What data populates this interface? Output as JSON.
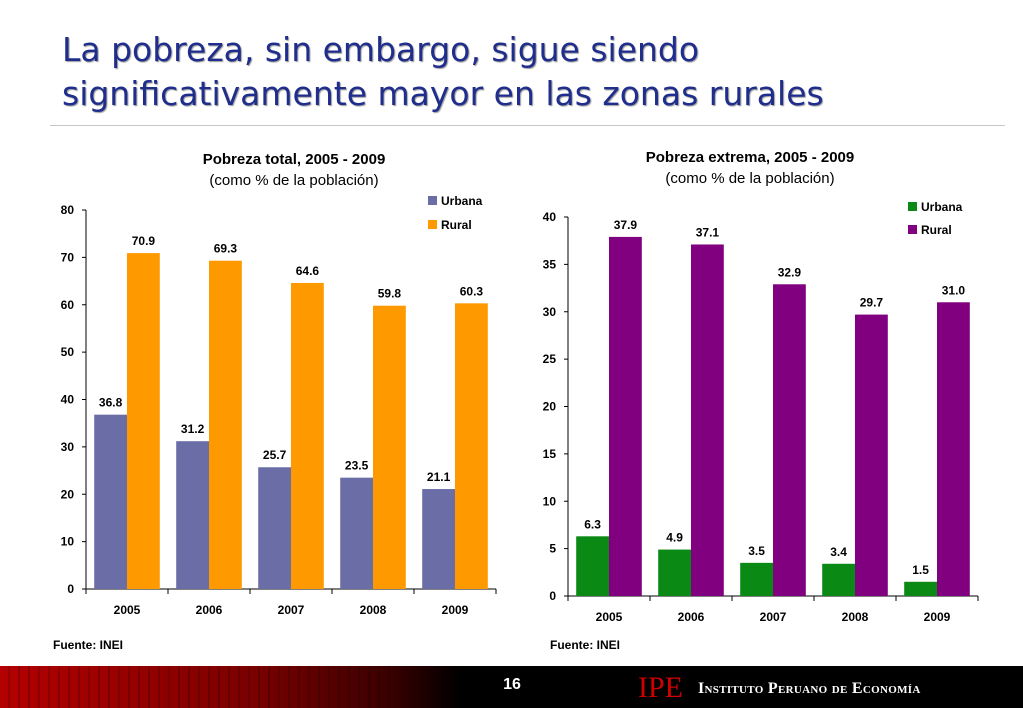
{
  "slide": {
    "title_line1": "La pobreza, sin embargo, sigue siendo",
    "title_line2": "significativamente mayor en las zonas rurales",
    "page_number": "16",
    "logo_text": "IPE",
    "institution": "Instituto Peruano de Economía"
  },
  "chart_data": [
    {
      "type": "bar",
      "title": "Pobreza total, 2005 - 2009",
      "subtitle": "(como % de la población)",
      "categories": [
        "2005",
        "2006",
        "2007",
        "2008",
        "2009"
      ],
      "series": [
        {
          "name": "Urbana",
          "color": "#6b6ea6",
          "values": [
            36.8,
            31.2,
            25.7,
            23.5,
            21.1
          ]
        },
        {
          "name": "Rural",
          "color": "#ff9900",
          "values": [
            70.9,
            69.3,
            64.6,
            59.8,
            60.3
          ]
        }
      ],
      "ylim": [
        0,
        80
      ],
      "yticks": [
        0,
        10,
        20,
        30,
        40,
        50,
        60,
        70,
        80
      ],
      "legend": "top-right",
      "source": "Fuente: INEI"
    },
    {
      "type": "bar",
      "title": "Pobreza extrema, 2005 - 2009",
      "subtitle": "(como % de la población)",
      "categories": [
        "2005",
        "2006",
        "2007",
        "2008",
        "2009"
      ],
      "series": [
        {
          "name": "Urbana",
          "color": "#0a8a14",
          "values": [
            6.3,
            4.9,
            3.5,
            3.4,
            1.5
          ]
        },
        {
          "name": "Rural",
          "color": "#800080",
          "values": [
            37.9,
            37.1,
            32.9,
            29.7,
            31.0
          ]
        }
      ],
      "ylim": [
        0,
        40
      ],
      "yticks": [
        0,
        5,
        10,
        15,
        20,
        25,
        30,
        35,
        40
      ],
      "legend": "top-right",
      "source": "Fuente: INEI"
    }
  ]
}
